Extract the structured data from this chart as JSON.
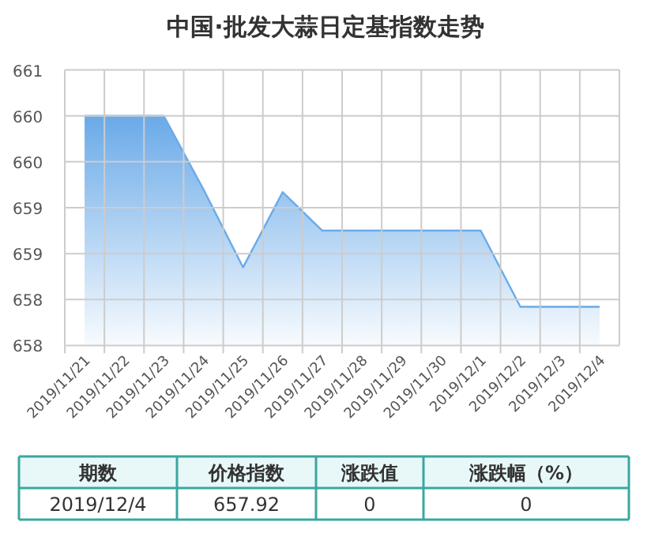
{
  "chart_data": {
    "type": "area",
    "title": "中国·批发大蒜日定基指数走势",
    "categories": [
      "2019/11/21",
      "2019/11/22",
      "2019/11/23",
      "2019/11/24",
      "2019/11/25",
      "2019/11/26",
      "2019/11/27",
      "2019/11/28",
      "2019/11/29",
      "2019/11/30",
      "2019/12/1",
      "2019/12/2",
      "2019/12/3",
      "2019/12/4"
    ],
    "series": [
      {
        "color": "#6aaae8",
        "values": [
          660.0,
          660.0,
          660.0,
          659.2,
          658.35,
          659.17,
          658.75,
          658.75,
          658.75,
          658.75,
          658.75,
          657.92,
          657.92,
          657.92
        ]
      }
    ],
    "ylim": [
      657.5,
      660.5
    ],
    "yticks": [
      {
        "value": 657.5,
        "label": "658"
      },
      {
        "value": 658,
        "label": "658"
      },
      {
        "value": 658.5,
        "label": "659"
      },
      {
        "value": 659,
        "label": "659"
      },
      {
        "value": 659.5,
        "label": "660"
      },
      {
        "value": 660,
        "label": "660"
      },
      {
        "value": 660.5,
        "label": "661"
      }
    ],
    "grid": true,
    "annotations": [
      "期数",
      "价格指数",
      "涨跌值",
      "涨跌幅（%）",
      "2019/12/4",
      "657.92",
      "0",
      "0"
    ]
  }
}
